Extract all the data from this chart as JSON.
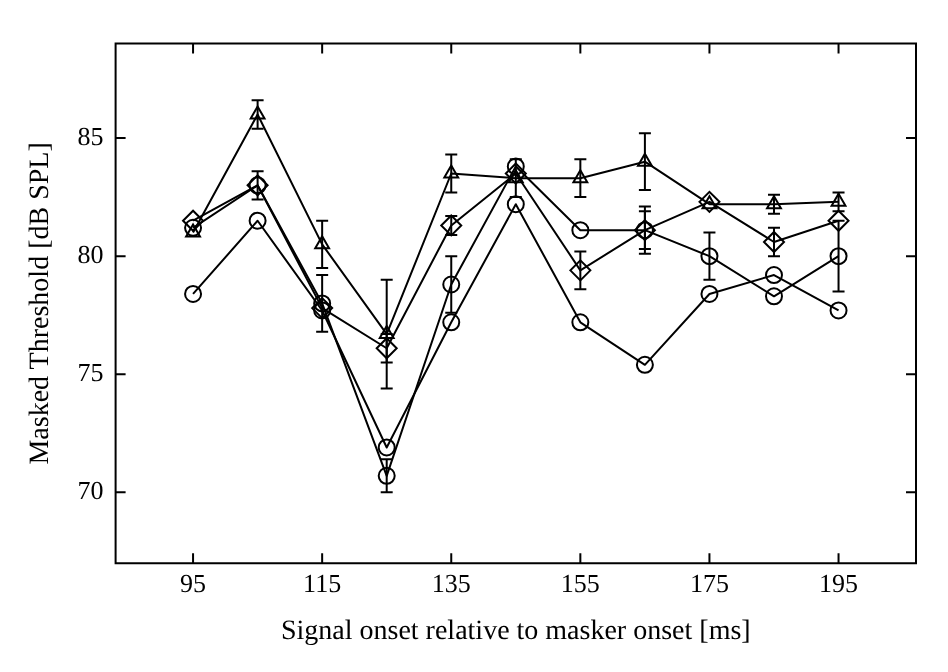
{
  "chart_data": {
    "type": "line",
    "xlabel": "Signal onset relative to masker onset [ms]",
    "ylabel": "Masked Threshold [dB SPL]",
    "x": [
      95,
      105,
      115,
      125,
      135,
      145,
      155,
      165,
      175,
      185,
      195
    ],
    "xlim": [
      83,
      207
    ],
    "xticks": [
      95,
      115,
      135,
      155,
      175,
      195
    ],
    "ylim": [
      67,
      89
    ],
    "yticks": [
      70,
      75,
      80,
      85
    ],
    "grid": false,
    "legend": false,
    "series": [
      {
        "color": "#000000",
        "marker": "circle",
        "values": [
          78.4,
          81.5,
          77.7,
          71.9,
          77.2,
          82.2,
          77.2,
          75.4,
          78.4,
          79.2,
          77.7
        ]
      },
      {
        "color": "#000000",
        "marker": "triangle",
        "values": [
          81,
          86,
          80.5,
          76.7,
          83.5,
          83.3,
          83.3,
          84,
          82.2,
          82.2,
          82.3
        ],
        "errors": [
          null,
          0.6,
          1,
          2.3,
          0.8,
          0.8,
          0.8,
          1.2,
          null,
          0.4,
          0.4
        ]
      },
      {
        "color": "#000000",
        "marker": "circle",
        "values": [
          81.2,
          83,
          78,
          70.7,
          78.8,
          83.8,
          81.1,
          81.1,
          80,
          78.3,
          80
        ],
        "errors": [
          null,
          0.6,
          1.2,
          0.7,
          1.2,
          null,
          null,
          1,
          1,
          null,
          1.5
        ]
      },
      {
        "color": "#000000",
        "marker": "diamond",
        "values": [
          81.5,
          83,
          77.8,
          76.1,
          81.3,
          83.5,
          79.4,
          81.1,
          82.3,
          80.6,
          81.5
        ],
        "errors": [
          null,
          null,
          null,
          0.6,
          0.4,
          null,
          0.8,
          0.8,
          null,
          0.6,
          null
        ]
      }
    ]
  }
}
